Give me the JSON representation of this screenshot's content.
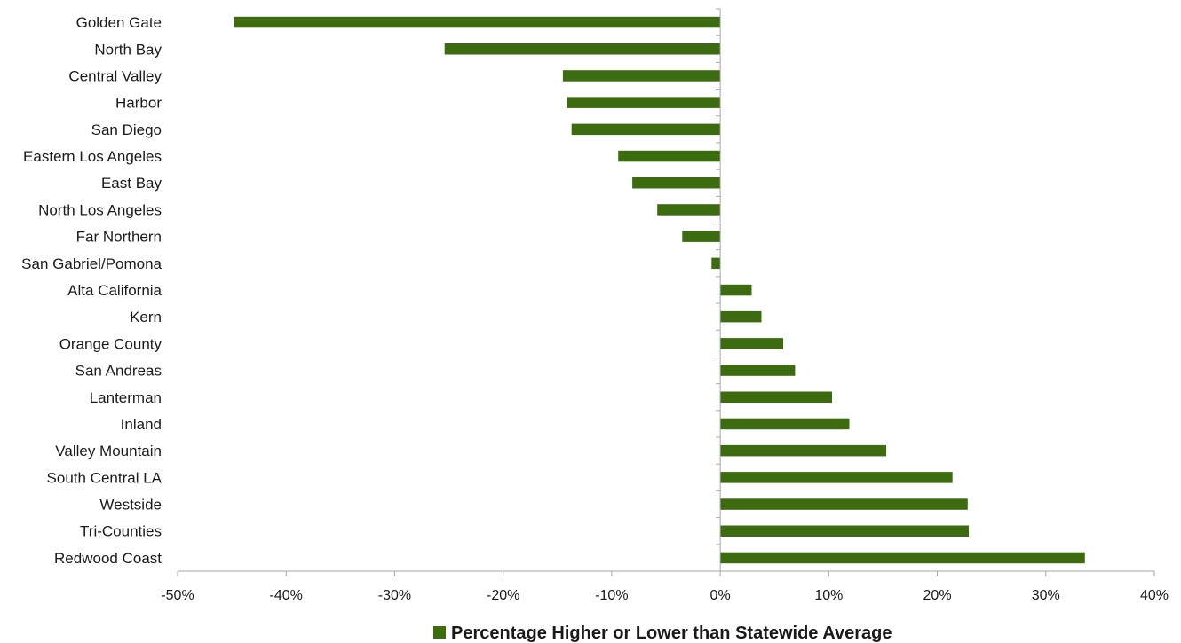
{
  "chart_data": {
    "type": "bar",
    "orientation": "horizontal",
    "categories": [
      "Golden Gate",
      "North Bay",
      "Central Valley",
      "Harbor",
      "San Diego",
      "Eastern Los Angeles",
      "East Bay",
      "North Los Angeles",
      "Far Northern",
      "San Gabriel/Pomona",
      "Alta California",
      "Kern",
      "Orange County",
      "San Andreas",
      "Lanterman",
      "Inland",
      "Valley Mountain",
      "South Central LA",
      "Westside",
      "Tri-Counties",
      "Redwood Coast"
    ],
    "series": [
      {
        "name": "Percentage Higher or Lower than Statewide Average",
        "color": "#3d6b0f",
        "values": [
          -44.8,
          -25.4,
          -14.5,
          -14.1,
          -13.7,
          -9.4,
          -8.1,
          -5.8,
          -3.5,
          -0.8,
          2.9,
          3.8,
          5.8,
          6.9,
          10.3,
          11.9,
          15.3,
          21.4,
          22.8,
          22.9,
          33.6
        ]
      }
    ],
    "xlim": [
      -50,
      40
    ],
    "x_ticks": [
      -50,
      -40,
      -30,
      -20,
      -10,
      0,
      10,
      20,
      30,
      40
    ],
    "x_tick_labels": [
      "-50%",
      "-40%",
      "-30%",
      "-20%",
      "-10%",
      "0%",
      "10%",
      "20%",
      "30%",
      "40%"
    ],
    "title": "",
    "xlabel": "",
    "ylabel": "",
    "grid": false,
    "legend_position": "bottom"
  }
}
